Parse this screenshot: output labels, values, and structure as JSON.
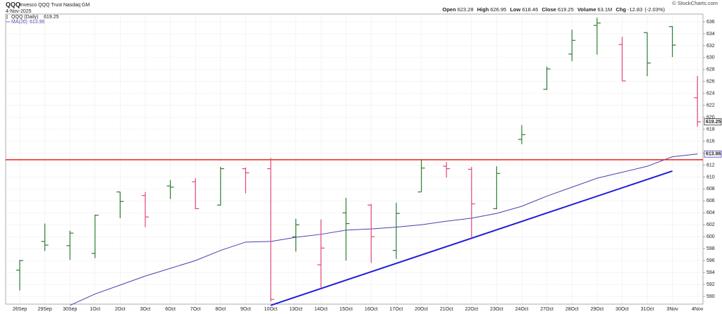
{
  "chart_data": {
    "type": "ohlc",
    "title": "QQQ",
    "subtitle": "Invesco QQQ Trust Nasdaq GM",
    "date": "4-Nov-2025",
    "copyright": "© StockCharts.com",
    "series_name": "QQQ (Daily)",
    "quote_labels": {
      "open": "Open",
      "high": "High",
      "low": "Low",
      "close": "Close",
      "volume": "Volume",
      "chg": "Chg"
    },
    "volume": 63100000,
    "volume_label": "63.1M",
    "chg": -12.83,
    "chg_pct": -2.03,
    "chg_pct_label": "(-2.03%)",
    "categories": [
      "26Sep",
      "29Sep",
      "30Sep",
      "1Oct",
      "2Oct",
      "3Oct",
      "6Oct",
      "7Oct",
      "8Oct",
      "9Oct",
      "10Oct",
      "13Oct",
      "14Oct",
      "15Oct",
      "16Oct",
      "17Oct",
      "20Oct",
      "21Oct",
      "22Oct",
      "23Oct",
      "24Oct",
      "27Oct",
      "28Oct",
      "29Oct",
      "30Oct",
      "31Oct",
      "3Nov",
      "4Nov"
    ],
    "open": [
      594.4,
      599.2,
      598.5,
      597.2,
      607.5,
      606.9,
      608.5,
      609.2,
      605.3,
      611.4,
      611.4,
      600.0,
      595.3,
      604.0,
      605.3,
      597.7,
      607.5,
      611.8,
      611.3,
      604.7,
      616.3,
      624.7,
      630.6,
      635.4,
      632.2,
      634.2,
      635.2,
      623.28
    ],
    "high": [
      596.1,
      602.2,
      601.0,
      603.7,
      607.5,
      607.5,
      609.5,
      609.8,
      611.7,
      611.6,
      613.2,
      603.0,
      602.9,
      606.5,
      605.5,
      605.7,
      612.9,
      612.5,
      611.7,
      611.8,
      618.7,
      628.5,
      634.7,
      636.7,
      633.5,
      634.2,
      635.3,
      626.95
    ],
    "low": [
      591.0,
      597.6,
      596.1,
      596.4,
      603.1,
      601.6,
      606.3,
      604.6,
      605.2,
      607.3,
      589.1,
      597.5,
      591.5,
      596.0,
      595.6,
      596.3,
      607.5,
      609.9,
      599.9,
      604.6,
      615.5,
      624.6,
      629.4,
      630.5,
      626.1,
      626.9,
      630.1,
      618.46
    ],
    "close": [
      596.0,
      598.6,
      600.6,
      603.6,
      605.9,
      603.3,
      608.3,
      604.7,
      611.4,
      610.7,
      589.5,
      602.0,
      598.1,
      602.2,
      600.0,
      603.9,
      611.5,
      611.4,
      605.5,
      610.6,
      617.1,
      628.1,
      632.9,
      635.8,
      626.1,
      629.1,
      632.1,
      619.25
    ],
    "up_color": "#2e7d32",
    "down_color": "#e0457b",
    "ma": {
      "name": "MA(20)",
      "color": "#4b3fb0",
      "values": [
        null,
        null,
        588.5,
        590.4,
        591.9,
        593.4,
        594.7,
        596.0,
        597.7,
        599.1,
        599.2,
        599.9,
        600.4,
        601.1,
        601.3,
        601.6,
        602.0,
        602.6,
        603.1,
        603.9,
        605.1,
        606.8,
        608.3,
        609.8,
        610.8,
        611.8,
        613.4,
        613.86
      ]
    },
    "levels": [
      {
        "value": 612.9,
        "color": "#e8231a"
      }
    ],
    "trend_lines": [
      {
        "start_category": "10Oct",
        "start": 588.5,
        "end_category": "3Nov",
        "end": 611.0,
        "color": "#1f1fd6"
      }
    ],
    "ylim": [
      588.7,
      637.3
    ],
    "yticks": [
      590,
      592,
      594,
      596,
      598,
      600,
      602,
      604,
      606,
      608,
      610,
      612,
      614,
      616,
      618,
      620,
      622,
      624,
      626,
      628,
      630,
      632,
      634,
      636
    ],
    "grid": true
  }
}
